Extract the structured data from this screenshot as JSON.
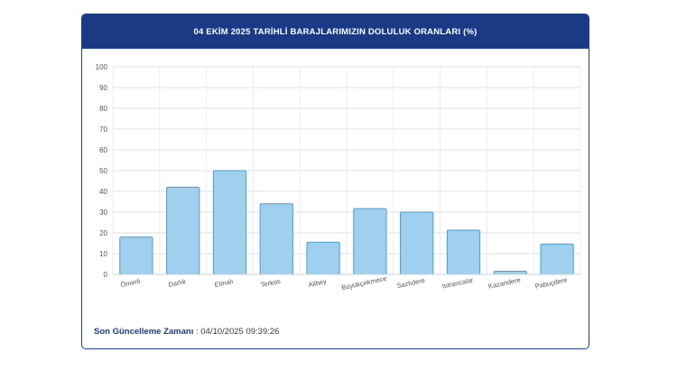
{
  "header": {
    "title": "04 EKİM 2025 TARİHLİ BARAJLARIMIZIN DOLULUK ORANLARI (%)"
  },
  "footer": {
    "label": "Son Güncelleme Zamanı",
    "separator": " : ",
    "value": "04/10/2025 09:39:26"
  },
  "colors": {
    "header_bg": "#1a3a86",
    "bar_fill": "#9fd0ee",
    "bar_stroke": "#4a9fd0"
  },
  "chart_data": {
    "type": "bar",
    "title": "04 EKİM 2025 TARİHLİ BARAJLARIMIZIN DOLULUK ORANLARI (%)",
    "categories": [
      "Ömerli",
      "Darlık",
      "Elmalı",
      "Terkos",
      "Alibey",
      "Büyükçekmece",
      "Sazlıdere",
      "Istrancalar",
      "Kazandere",
      "Pabuçdere"
    ],
    "values": [
      18,
      42,
      50,
      34,
      15.5,
      31.7,
      30,
      21.3,
      1.5,
      14.6
    ],
    "ylim": [
      0,
      100
    ],
    "yticks": [
      0,
      10,
      20,
      30,
      40,
      50,
      60,
      70,
      80,
      90,
      100
    ],
    "grid": true,
    "xlabel": "",
    "ylabel": ""
  }
}
